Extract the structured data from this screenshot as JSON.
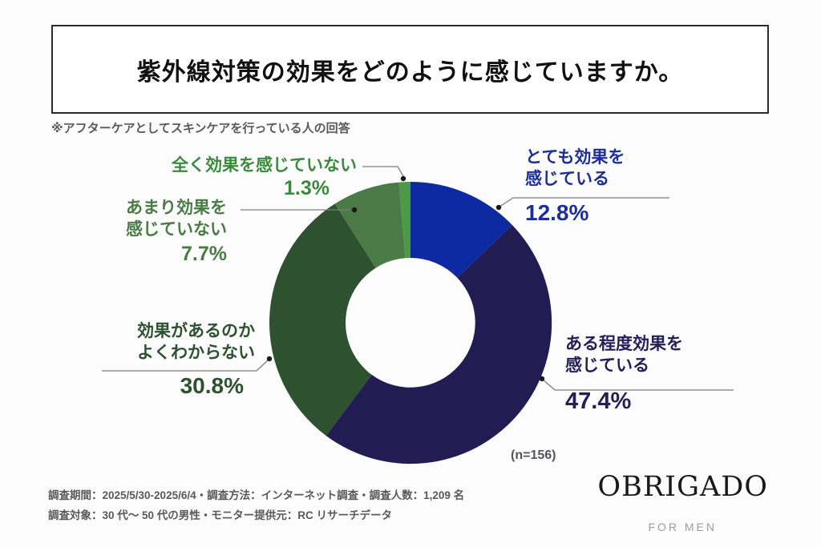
{
  "title": {
    "text": "紫外線対策の効果をどのように感じていますか。"
  },
  "note": {
    "text": "※アフターケアとしてスキンケアを行っている人の回答"
  },
  "chart": {
    "sample": "(n=156)"
  },
  "callouts": [
    {
      "line1": "とても効果を",
      "line2": "感じている",
      "pct": "12.8%",
      "color": "#1d2f96"
    },
    {
      "line1": "ある程度効果を",
      "line2": "感じている",
      "pct": "47.4%",
      "color": "#231e55"
    },
    {
      "line1": "効果があるのか",
      "line2": "よくわからない",
      "pct": "30.8%",
      "color": "#2e5130"
    },
    {
      "line1": "あまり効果を",
      "line2": "感じていない",
      "pct": "7.7%",
      "color": "#4a7b46"
    },
    {
      "line1": "全く効果を感じていない",
      "line2": "",
      "pct": "1.3%",
      "color": "#3a8a3e"
    }
  ],
  "chart_data": {
    "type": "pie",
    "subtype": "donut",
    "title": "紫外線対策の効果をどのように感じていますか。",
    "note": "※アフターケアとしてスキンケアを行っている人の回答",
    "sample_size": 156,
    "sample_label": "(n=156)",
    "start_angle_deg": 0,
    "direction": "clockwise",
    "hole_ratio": 0.46,
    "segments": [
      {
        "label": "とても効果を感じている",
        "value": 12.8,
        "color": "#0d2aa2"
      },
      {
        "label": "ある程度効果を感じている",
        "value": 47.4,
        "color": "#211c52"
      },
      {
        "label": "効果があるのかよくわからない",
        "value": 30.8,
        "color": "#2e5130"
      },
      {
        "label": "あまり効果を感じていない",
        "value": 7.7,
        "color": "#4a7b46"
      },
      {
        "label": "全く効果を感じていない",
        "value": 1.3,
        "color": "#4b9a45"
      }
    ]
  },
  "footer": {
    "line1": "調査期間：2025/5/30-2025/6/4・調査方法：インターネット調査・調査人数：1,209 名",
    "line2": "調査対象：30 代～ 50 代の男性・モニター提供元：RC リサーチデータ"
  },
  "brand": {
    "logo": "OBRIGADO",
    "sub": "FOR MEN"
  }
}
